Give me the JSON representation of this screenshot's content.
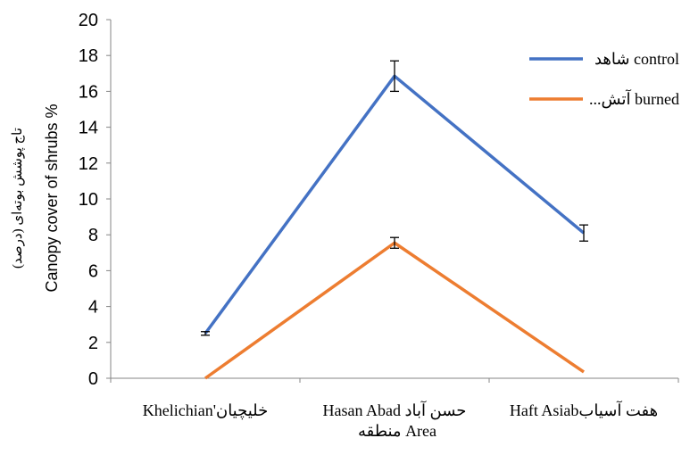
{
  "chart_data": {
    "type": "line",
    "categories": [
      "Khelichian'خلیچیان",
      "Hasan Abad حسن آباد",
      "Haft Asiabهفت آسیاب"
    ],
    "series": [
      {
        "name": "شاهد control",
        "color": "#4472C4",
        "values": [
          2.5,
          16.85,
          8.1
        ],
        "errors": [
          0.1,
          0.85,
          0.45
        ]
      },
      {
        "name": "...آتش  burned",
        "color": "#ED7D31",
        "values": [
          0.0,
          7.55,
          0.35
        ],
        "errors": [
          0.0,
          0.3,
          0.0
        ]
      }
    ],
    "xlabel": "منطقه Area",
    "ylabel": "Canopy cover of shrubs %",
    "ylabel_secondary": "تاج پوشش بوته‌ای (درصد)",
    "ylim": [
      0,
      20
    ],
    "yticks": [
      "0",
      "2",
      "4",
      "6",
      "8",
      "10",
      "12",
      "14",
      "16",
      "18",
      "20"
    ],
    "grid": false,
    "legend_position": "top-right"
  }
}
